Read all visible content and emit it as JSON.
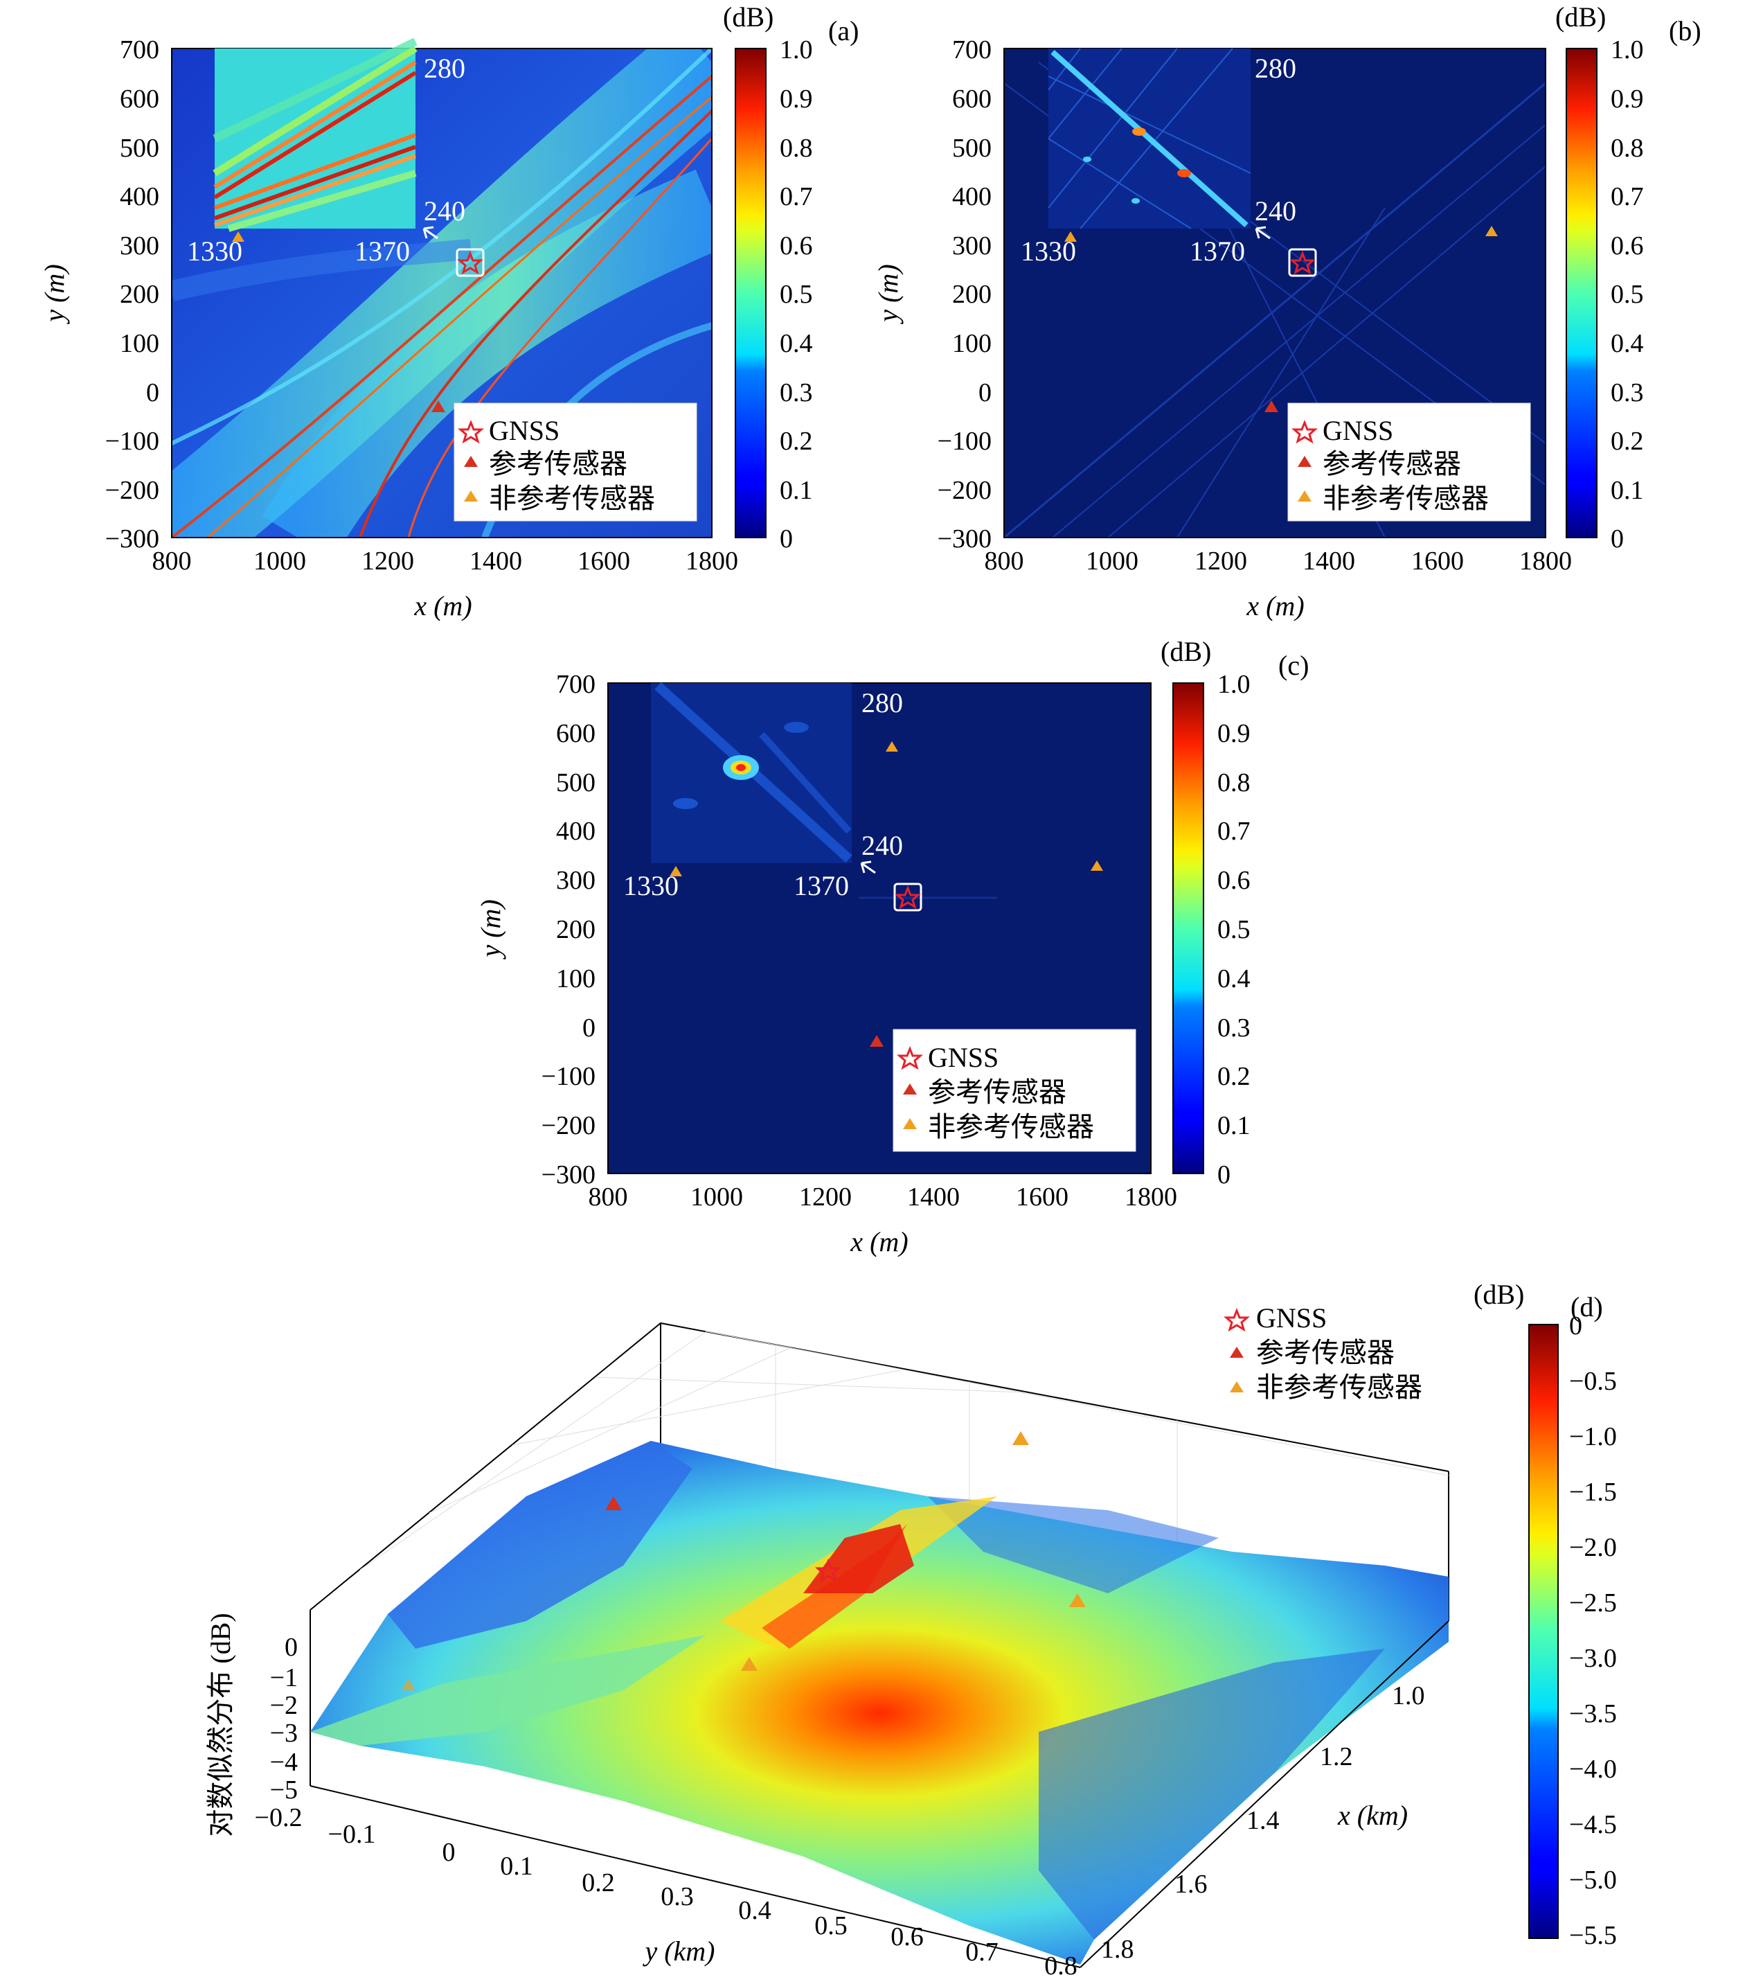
{
  "chart_data": [
    {
      "panel": "(a)",
      "type": "heatmap",
      "xlabel": "x (m)",
      "ylabel": "y (m)",
      "xlim": [
        800,
        1800
      ],
      "ylim": [
        -300,
        700
      ],
      "xticks": [
        "800",
        "1000",
        "1200",
        "1400",
        "1600",
        "1800"
      ],
      "yticks": [
        "700",
        "600",
        "500",
        "400",
        "300",
        "200",
        "100",
        "0",
        "−100",
        "−200",
        "−300"
      ],
      "colorbar": {
        "unit": "(dB)",
        "range": [
          0,
          1
        ],
        "ticks": [
          "1.0",
          "0.9",
          "0.8",
          "0.7",
          "0.6",
          "0.5",
          "0.4",
          "0.3",
          "0.2",
          "0.1",
          "0"
        ]
      },
      "inset": {
        "x_range": [
          "1330",
          "1370"
        ],
        "y_range": [
          "240",
          "280"
        ]
      },
      "markers": {
        "gnss": [
          {
            "x": 1355,
            "y": 265
          }
        ],
        "reference_sensor": [
          {
            "x": 1295,
            "y": -30
          }
        ],
        "non_reference_sensor": [
          {
            "x": 920,
            "y": 320
          }
        ]
      },
      "legend": {
        "position": "bottom-right",
        "items": [
          "GNSS",
          "参考传感器",
          "非参考传感器"
        ]
      }
    },
    {
      "panel": "(b)",
      "type": "heatmap",
      "xlabel": "x (m)",
      "ylabel": "y (m)",
      "xlim": [
        800,
        1800
      ],
      "ylim": [
        -300,
        700
      ],
      "xticks": [
        "800",
        "1000",
        "1200",
        "1400",
        "1600",
        "1800"
      ],
      "yticks": [
        "700",
        "600",
        "500",
        "400",
        "300",
        "200",
        "100",
        "0",
        "−100",
        "−200",
        "−300"
      ],
      "colorbar": {
        "unit": "(dB)",
        "range": [
          0,
          1
        ],
        "ticks": [
          "1.0",
          "0.9",
          "0.8",
          "0.7",
          "0.6",
          "0.5",
          "0.4",
          "0.3",
          "0.2",
          "0.1",
          "0"
        ]
      },
      "inset": {
        "x_range": [
          "1330",
          "1370"
        ],
        "y_range": [
          "240",
          "280"
        ]
      },
      "markers": {
        "gnss": [
          {
            "x": 1355,
            "y": 265
          }
        ],
        "reference_sensor": [
          {
            "x": 1295,
            "y": -30
          }
        ],
        "non_reference_sensor": [
          {
            "x": 920,
            "y": 320
          },
          {
            "x": 1700,
            "y": 330
          }
        ]
      },
      "legend": {
        "position": "bottom-right",
        "items": [
          "GNSS",
          "参考传感器",
          "非参考传感器"
        ]
      }
    },
    {
      "panel": "(c)",
      "type": "heatmap",
      "xlabel": "x (m)",
      "ylabel": "y (m)",
      "xlim": [
        800,
        1800
      ],
      "ylim": [
        -300,
        700
      ],
      "xticks": [
        "800",
        "1000",
        "1200",
        "1400",
        "1600",
        "1800"
      ],
      "yticks": [
        "700",
        "600",
        "500",
        "400",
        "300",
        "200",
        "100",
        "0",
        "−100",
        "−200",
        "−300"
      ],
      "colorbar": {
        "unit": "(dB)",
        "range": [
          0,
          1
        ],
        "ticks": [
          "1.0",
          "0.9",
          "0.8",
          "0.7",
          "0.6",
          "0.5",
          "0.4",
          "0.3",
          "0.2",
          "0.1",
          "0"
        ]
      },
      "inset": {
        "x_range": [
          "1330",
          "1370"
        ],
        "y_range": [
          "240",
          "280"
        ]
      },
      "markers": {
        "gnss": [
          {
            "x": 1355,
            "y": 265
          }
        ],
        "reference_sensor": [
          {
            "x": 1295,
            "y": -30
          }
        ],
        "non_reference_sensor": [
          {
            "x": 920,
            "y": 320
          },
          {
            "x": 1320,
            "y": 575
          },
          {
            "x": 1700,
            "y": 330
          }
        ]
      },
      "legend": {
        "position": "bottom-right",
        "items": [
          "GNSS",
          "参考传感器",
          "非参考传感器"
        ]
      }
    },
    {
      "panel": "(d)",
      "type": "surface",
      "xlabel": "x (km)",
      "ylabel": "y (km)",
      "zlabel": "对数似然分布 (dB)",
      "xticks": [
        "1.0",
        "1.2",
        "1.4",
        "1.6",
        "1.8"
      ],
      "yticks": [
        "−0.2",
        "−0.1",
        "0",
        "0.1",
        "0.2",
        "0.3",
        "0.4",
        "0.5",
        "0.6",
        "0.7",
        "0.8"
      ],
      "zticks": [
        "0",
        "−1",
        "−2",
        "−3",
        "−4",
        "−5"
      ],
      "colorbar": {
        "unit": "(dB)",
        "range": [
          -5.5,
          0
        ],
        "ticks": [
          "0",
          "−0.5",
          "−1.0",
          "−1.5",
          "−2.0",
          "−2.5",
          "−3.0",
          "−3.5",
          "−4.0",
          "−4.5",
          "−5.0",
          "−5.5"
        ]
      },
      "legend": {
        "position": "top-right",
        "items": [
          "GNSS",
          "参考传感器",
          "非参考传感器"
        ]
      }
    }
  ],
  "colors": {
    "gnss": "#e8202a",
    "reference_sensor": "#d7301f",
    "non_reference_sensor": "#f0a020",
    "background_a": "#1a48d0",
    "background_bc": "#061a6e"
  }
}
